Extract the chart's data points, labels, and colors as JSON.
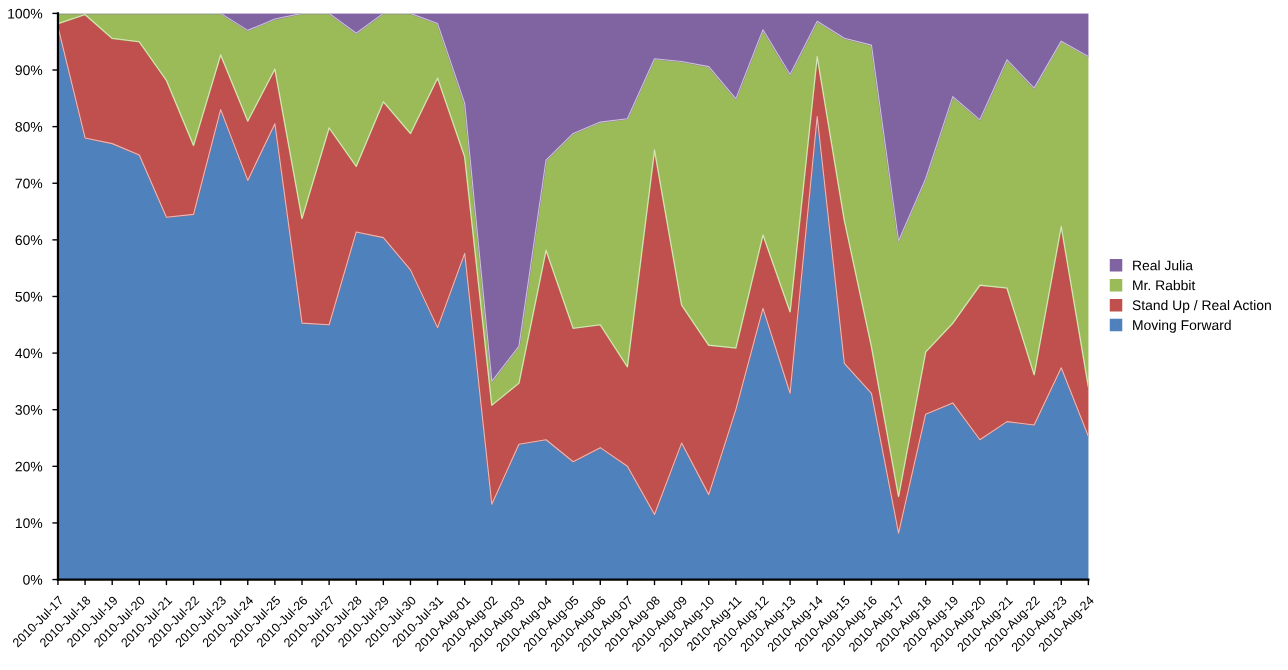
{
  "chart_data": {
    "type": "area",
    "stacked": true,
    "categories": [
      "2010-Jul-17",
      "2010-Jul-18",
      "2010-Jul-19",
      "2010-Jul-20",
      "2010-Jul-21",
      "2010-Jul-22",
      "2010-Jul-23",
      "2010-Jul-24",
      "2010-Jul-25",
      "2010-Jul-26",
      "2010-Jul-27",
      "2010-Jul-28",
      "2010-Jul-29",
      "2010-Jul-30",
      "2010-Jul-31",
      "2010-Aug-01",
      "2010-Aug-02",
      "2010-Aug-03",
      "2010-Aug-04",
      "2010-Aug-05",
      "2010-Aug-06",
      "2010-Aug-07",
      "2010-Aug-08",
      "2010-Aug-09",
      "2010-Aug-10",
      "2010-Aug-11",
      "2010-Aug-12",
      "2010-Aug-13",
      "2010-Aug-14",
      "2010-Aug-15",
      "2010-Aug-16",
      "2010-Aug-17",
      "2010-Aug-18",
      "2010-Aug-19",
      "2010-Aug-20",
      "2010-Aug-21",
      "2010-Aug-22",
      "2010-Aug-23",
      "2010-Aug-24"
    ],
    "series": [
      {
        "name": "Moving Forward",
        "color": "#4f81bd",
        "values": [
          97.6,
          78,
          77,
          75,
          64,
          64.5,
          83,
          70.5,
          80.5,
          45.3,
          45,
          61.4,
          60.4,
          54.7,
          44.5,
          57.6,
          13.3,
          23.9,
          24.7,
          20.8,
          23.3,
          20,
          11.5,
          24.1,
          15,
          30,
          47.9,
          32.9,
          81.8,
          38.2,
          32.9,
          8.2,
          29.2,
          31.2,
          24.7,
          27.9,
          27.3,
          37.4,
          25.3
        ]
      },
      {
        "name": "Stand Up / Real Action",
        "color": "#c0504d",
        "values": [
          0.6,
          21.8,
          18.6,
          20,
          24.2,
          12.2,
          9.7,
          10.5,
          9.7,
          18.5,
          34.8,
          11.6,
          24,
          24.1,
          44.1,
          17.1,
          17.5,
          10.8,
          33.5,
          23.6,
          21.7,
          17.6,
          64.4,
          24.4,
          26.4,
          10.9,
          13,
          14.4,
          10.6,
          25.3,
          8.3,
          6.5,
          11,
          14.1,
          27.3,
          23.6,
          8.9,
          25,
          8.8
        ]
      },
      {
        "name": "Mr. Rabbit",
        "color": "#9bbb59",
        "values": [
          1.8,
          0.2,
          4.4,
          5,
          11.8,
          23.3,
          7.3,
          16,
          8.8,
          36.2,
          20.2,
          23.5,
          15.6,
          21.2,
          9.6,
          9.4,
          4.2,
          6.5,
          15.9,
          34.4,
          35.8,
          43.8,
          16.1,
          43,
          49.2,
          44,
          36.2,
          41.9,
          6.2,
          32.1,
          53.2,
          45.1,
          30.6,
          40,
          29.2,
          40.3,
          50.6,
          32.7,
          58.3
        ]
      },
      {
        "name": "Real Julia",
        "color": "#8064a2",
        "values": [
          0,
          0,
          0,
          0,
          0,
          0,
          0,
          3,
          1,
          0,
          0,
          3.5,
          0,
          0,
          1.8,
          15.9,
          65,
          58.8,
          25.9,
          21.2,
          19.2,
          18.6,
          8,
          8.5,
          9.4,
          15.1,
          2.9,
          10.8,
          1.4,
          4.4,
          5.6,
          40.2,
          29.2,
          14.7,
          18.8,
          8.2,
          13.2,
          4.9,
          7.6
        ]
      }
    ],
    "ylim": [
      0,
      100
    ],
    "yticks": [
      {
        "value": 0,
        "label": "0%"
      },
      {
        "value": 10,
        "label": "10%"
      },
      {
        "value": 20,
        "label": "20%"
      },
      {
        "value": 30,
        "label": "30%"
      },
      {
        "value": 40,
        "label": "40%"
      },
      {
        "value": 50,
        "label": "50%"
      },
      {
        "value": 60,
        "label": "60%"
      },
      {
        "value": 70,
        "label": "70%"
      },
      {
        "value": 80,
        "label": "80%"
      },
      {
        "value": 90,
        "label": "90%"
      },
      {
        "value": 100,
        "label": "100%"
      }
    ],
    "grid": false,
    "legend": "right"
  }
}
